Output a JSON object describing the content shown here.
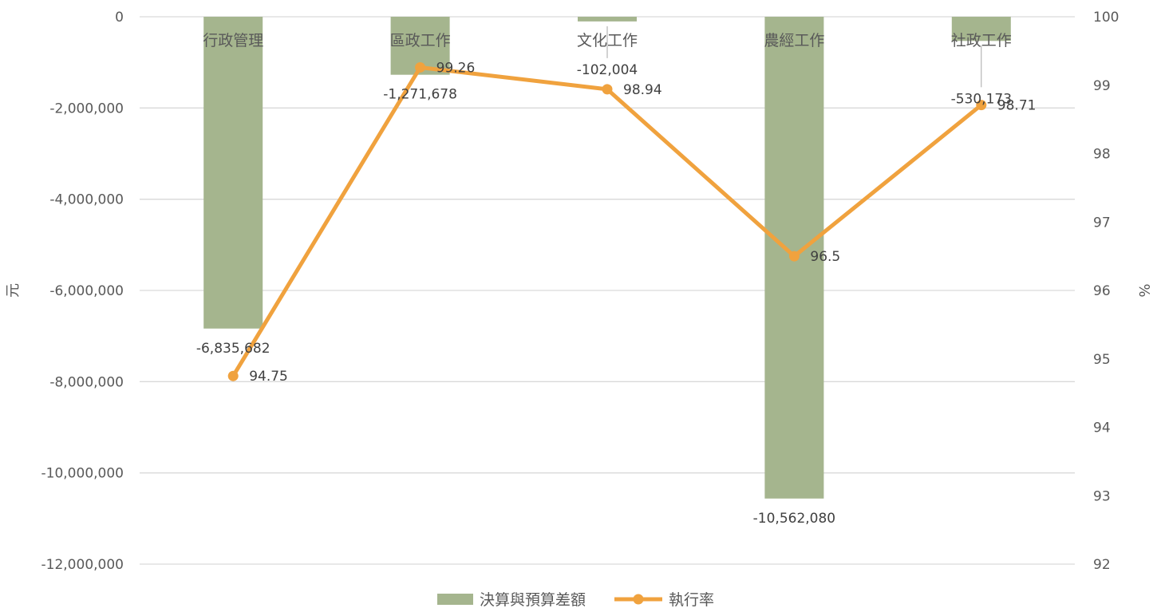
{
  "colors": {
    "bar": "#a5b58e",
    "line": "#f0a23e",
    "grid": "#d9d9d9",
    "text": "#595959",
    "label": "#404040"
  },
  "chart_data": {
    "type": "bar+line",
    "categories": [
      "行政管理",
      "區政工作",
      "文化工作",
      "農經工作",
      "社政工作"
    ],
    "series": [
      {
        "name": "決算與預算差額",
        "type": "bar",
        "axis": "left",
        "values": [
          -6835682,
          -1271678,
          -102004,
          -10562080,
          -530173
        ],
        "labels": [
          "-6,835,682",
          "-1,271,678",
          "-102,004",
          "-10,562,080",
          "-530,173"
        ]
      },
      {
        "name": "執行率",
        "type": "line",
        "axis": "right",
        "values": [
          94.75,
          99.26,
          98.94,
          96.5,
          98.71
        ],
        "labels": [
          "94.75",
          "99.26",
          "98.94",
          "96.5",
          "98.71"
        ]
      }
    ],
    "ylabel": "元",
    "y2label": "%",
    "ylim": [
      -12000000,
      0
    ],
    "y2lim": [
      92,
      100
    ],
    "yticks": [
      "0",
      "-2,000,000",
      "-4,000,000",
      "-6,000,000",
      "-8,000,000",
      "-10,000,000",
      "-12,000,000"
    ],
    "y2ticks": [
      "100",
      "99",
      "98",
      "97",
      "96",
      "95",
      "94",
      "93",
      "92"
    ],
    "grid": true,
    "legend": "bottom-center"
  }
}
